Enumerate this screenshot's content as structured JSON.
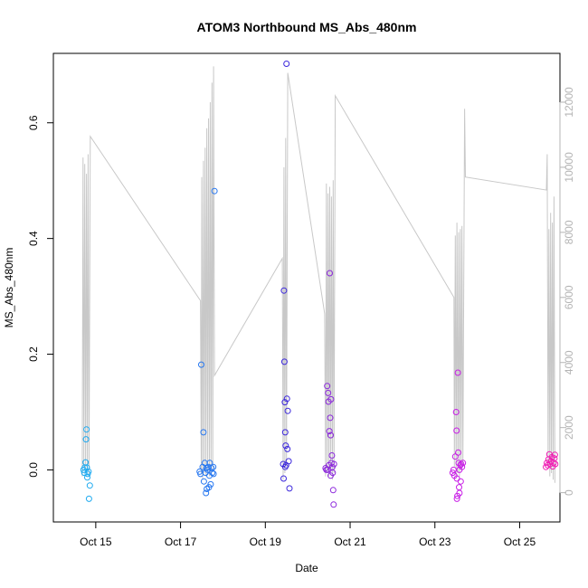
{
  "chart_data": {
    "type": "scatter",
    "title": "ATOM3 Northbound MS_Abs_480nm",
    "xlabel": "Date",
    "ylabel": "MS_Abs_480nm",
    "x_ticks": [
      "Oct 15",
      "Oct 17",
      "Oct 19",
      "Oct 21",
      "Oct 23",
      "Oct 25"
    ],
    "x_tick_days": [
      15,
      17,
      19,
      21,
      23,
      25
    ],
    "xlim_days": [
      14.0,
      25.95
    ],
    "ylim": [
      -0.09,
      0.72
    ],
    "y_ticks": [
      0.0,
      0.2,
      0.4,
      0.6
    ],
    "y_tick_labels": [
      "0.0",
      "0.2",
      "0.4",
      "0.6"
    ],
    "y2_ticks": [
      0,
      2000,
      4000,
      6000,
      8000,
      10000,
      12000
    ],
    "y2_tick_labels": [
      "0",
      "2000",
      "4000",
      "6000",
      "8000",
      "10000",
      "12000"
    ],
    "y2lim": [
      -900,
      13500
    ],
    "colors": {
      "axis": "#000000",
      "altitude": "#c8c8c8",
      "right_axis": "#b4b4b4"
    },
    "series": [
      {
        "role": "MS_Abs_480nm",
        "points": [
          {
            "day": 14.71,
            "y": 0.0,
            "color": "#1eaaf0"
          },
          {
            "day": 14.73,
            "y": -0.005,
            "color": "#1eaaf0"
          },
          {
            "day": 14.74,
            "y": 0.004,
            "color": "#1eaaf0"
          },
          {
            "day": 14.76,
            "y": 0.013,
            "color": "#1eaaf0"
          },
          {
            "day": 14.77,
            "y": 0.053,
            "color": "#1eaaf0"
          },
          {
            "day": 14.78,
            "y": 0.07,
            "color": "#1eaaf0"
          },
          {
            "day": 14.79,
            "y": 0.004,
            "color": "#1eaaf0"
          },
          {
            "day": 14.8,
            "y": -0.013,
            "color": "#1eaaf0"
          },
          {
            "day": 14.81,
            "y": -0.007,
            "color": "#1eaaf0"
          },
          {
            "day": 14.83,
            "y": -0.003,
            "color": "#1eaaf0"
          },
          {
            "day": 14.84,
            "y": -0.05,
            "color": "#1eaaf0"
          },
          {
            "day": 14.86,
            "y": -0.027,
            "color": "#1eaaf0"
          },
          {
            "day": 17.45,
            "y": -0.003,
            "color": "#2878f0"
          },
          {
            "day": 17.47,
            "y": -0.007,
            "color": "#2878f0"
          },
          {
            "day": 17.49,
            "y": 0.182,
            "color": "#2878f0"
          },
          {
            "day": 17.52,
            "y": 0.005,
            "color": "#2878f0"
          },
          {
            "day": 17.54,
            "y": 0.065,
            "color": "#2878f0"
          },
          {
            "day": 17.55,
            "y": -0.02,
            "color": "#2878f0"
          },
          {
            "day": 17.57,
            "y": 0.012,
            "color": "#2878f0"
          },
          {
            "day": 17.59,
            "y": -0.005,
            "color": "#2878f0"
          },
          {
            "day": 17.61,
            "y": 0.003,
            "color": "#2878f0"
          },
          {
            "day": 17.62,
            "y": -0.033,
            "color": "#2878f0"
          },
          {
            "day": 17.64,
            "y": 0.0,
            "color": "#2878f0"
          },
          {
            "day": 17.66,
            "y": 0.005,
            "color": "#2878f0"
          },
          {
            "day": 17.68,
            "y": -0.01,
            "color": "#2878f0"
          },
          {
            "day": 17.69,
            "y": 0.012,
            "color": "#2878f0"
          },
          {
            "day": 17.71,
            "y": -0.025,
            "color": "#2878f0"
          },
          {
            "day": 17.73,
            "y": 0.003,
            "color": "#2878f0"
          },
          {
            "day": 17.75,
            "y": -0.005,
            "color": "#2878f0"
          },
          {
            "day": 17.77,
            "y": 0.005,
            "color": "#2878f0"
          },
          {
            "day": 17.78,
            "y": -0.007,
            "color": "#2878f0"
          },
          {
            "day": 17.8,
            "y": 0.482,
            "color": "#2878f0"
          },
          {
            "day": 17.6,
            "y": -0.04,
            "color": "#2878f0"
          },
          {
            "day": 17.67,
            "y": -0.03,
            "color": "#2878f0"
          },
          {
            "day": 19.42,
            "y": 0.01,
            "color": "#3c28dc"
          },
          {
            "day": 19.43,
            "y": -0.015,
            "color": "#3c28dc"
          },
          {
            "day": 19.44,
            "y": 0.31,
            "color": "#3c28dc"
          },
          {
            "day": 19.45,
            "y": 0.187,
            "color": "#3c28dc"
          },
          {
            "day": 19.46,
            "y": 0.117,
            "color": "#3c28dc"
          },
          {
            "day": 19.47,
            "y": 0.065,
            "color": "#3c28dc"
          },
          {
            "day": 19.48,
            "y": 0.042,
            "color": "#3c28dc"
          },
          {
            "day": 19.49,
            "y": 0.008,
            "color": "#3c28dc"
          },
          {
            "day": 19.5,
            "y": 0.702,
            "color": "#3c28dc"
          },
          {
            "day": 19.51,
            "y": 0.123,
            "color": "#3c28dc"
          },
          {
            "day": 19.52,
            "y": 0.036,
            "color": "#3c28dc"
          },
          {
            "day": 19.53,
            "y": 0.102,
            "color": "#3c28dc"
          },
          {
            "day": 19.55,
            "y": 0.015,
            "color": "#3c28dc"
          },
          {
            "day": 19.57,
            "y": -0.032,
            "color": "#3c28dc"
          },
          {
            "day": 19.47,
            "y": 0.005,
            "color": "#3c28dc"
          },
          {
            "day": 20.42,
            "y": 0.003,
            "color": "#8c28dc"
          },
          {
            "day": 20.44,
            "y": 0.0,
            "color": "#8c28dc"
          },
          {
            "day": 20.46,
            "y": 0.145,
            "color": "#8c28dc"
          },
          {
            "day": 20.48,
            "y": 0.133,
            "color": "#8c28dc"
          },
          {
            "day": 20.49,
            "y": 0.118,
            "color": "#8c28dc"
          },
          {
            "day": 20.5,
            "y": 0.008,
            "color": "#8c28dc"
          },
          {
            "day": 20.51,
            "y": 0.067,
            "color": "#8c28dc"
          },
          {
            "day": 20.52,
            "y": 0.34,
            "color": "#8c28dc"
          },
          {
            "day": 20.53,
            "y": 0.09,
            "color": "#8c28dc"
          },
          {
            "day": 20.54,
            "y": 0.06,
            "color": "#8c28dc"
          },
          {
            "day": 20.55,
            "y": 0.122,
            "color": "#8c28dc"
          },
          {
            "day": 20.56,
            "y": 0.012,
            "color": "#8c28dc"
          },
          {
            "day": 20.57,
            "y": 0.025,
            "color": "#8c28dc"
          },
          {
            "day": 20.58,
            "y": 0.005,
            "color": "#8c28dc"
          },
          {
            "day": 20.59,
            "y": -0.005,
            "color": "#8c28dc"
          },
          {
            "day": 20.6,
            "y": -0.035,
            "color": "#8c28dc"
          },
          {
            "day": 20.61,
            "y": -0.06,
            "color": "#8c28dc"
          },
          {
            "day": 20.62,
            "y": 0.01,
            "color": "#8c28dc"
          },
          {
            "day": 20.54,
            "y": -0.01,
            "color": "#8c28dc"
          },
          {
            "day": 20.47,
            "y": 0.0,
            "color": "#8c28dc"
          },
          {
            "day": 23.42,
            "y": -0.005,
            "color": "#c81ee6"
          },
          {
            "day": 23.44,
            "y": 0.0,
            "color": "#c81ee6"
          },
          {
            "day": 23.46,
            "y": -0.01,
            "color": "#c81ee6"
          },
          {
            "day": 23.48,
            "y": 0.023,
            "color": "#c81ee6"
          },
          {
            "day": 23.5,
            "y": 0.1,
            "color": "#c81ee6"
          },
          {
            "day": 23.51,
            "y": 0.068,
            "color": "#c81ee6"
          },
          {
            "day": 23.52,
            "y": -0.015,
            "color": "#c81ee6"
          },
          {
            "day": 23.53,
            "y": -0.045,
            "color": "#c81ee6"
          },
          {
            "day": 23.54,
            "y": 0.168,
            "color": "#c81ee6"
          },
          {
            "day": 23.55,
            "y": 0.03,
            "color": "#c81ee6"
          },
          {
            "day": 23.56,
            "y": 0.012,
            "color": "#c81ee6"
          },
          {
            "day": 23.57,
            "y": -0.03,
            "color": "#c81ee6"
          },
          {
            "day": 23.58,
            "y": 0.0,
            "color": "#c81ee6"
          },
          {
            "day": 23.6,
            "y": 0.008,
            "color": "#c81ee6"
          },
          {
            "day": 23.61,
            "y": -0.02,
            "color": "#c81ee6"
          },
          {
            "day": 23.62,
            "y": 0.01,
            "color": "#c81ee6"
          },
          {
            "day": 23.64,
            "y": 0.005,
            "color": "#c81ee6"
          },
          {
            "day": 23.66,
            "y": 0.012,
            "color": "#c81ee6"
          },
          {
            "day": 23.52,
            "y": -0.05,
            "color": "#c81ee6"
          },
          {
            "day": 23.58,
            "y": -0.04,
            "color": "#c81ee6"
          },
          {
            "day": 25.62,
            "y": 0.005,
            "color": "#f01eb4"
          },
          {
            "day": 25.64,
            "y": 0.012,
            "color": "#f01eb4"
          },
          {
            "day": 25.66,
            "y": 0.008,
            "color": "#f01eb4"
          },
          {
            "day": 25.68,
            "y": 0.018,
            "color": "#f01eb4"
          },
          {
            "day": 25.7,
            "y": 0.027,
            "color": "#f01eb4"
          },
          {
            "day": 25.72,
            "y": 0.01,
            "color": "#f01eb4"
          },
          {
            "day": 25.74,
            "y": 0.015,
            "color": "#f01eb4"
          },
          {
            "day": 25.76,
            "y": 0.022,
            "color": "#f01eb4"
          },
          {
            "day": 25.78,
            "y": 0.006,
            "color": "#f01eb4"
          },
          {
            "day": 25.8,
            "y": 0.012,
            "color": "#f01eb4"
          },
          {
            "day": 25.82,
            "y": 0.02,
            "color": "#f01eb4"
          },
          {
            "day": 25.84,
            "y": 0.01,
            "color": "#f01eb4"
          },
          {
            "day": 25.83,
            "y": 0.026,
            "color": "#f01eb4"
          }
        ]
      },
      {
        "role": "altitude (right axis)",
        "color": "#c8c8c8",
        "points": [
          [
            14.68,
            500
          ],
          [
            14.7,
            10300
          ],
          [
            14.72,
            800
          ],
          [
            14.74,
            10100
          ],
          [
            14.76,
            600
          ],
          [
            14.78,
            9800
          ],
          [
            14.8,
            700
          ],
          [
            14.82,
            10400
          ],
          [
            14.84,
            500
          ],
          [
            14.87,
            10950
          ],
          [
            17.47,
            5900
          ],
          [
            17.49,
            600
          ],
          [
            17.5,
            9700
          ],
          [
            17.52,
            400
          ],
          [
            17.54,
            10200
          ],
          [
            17.56,
            600
          ],
          [
            17.58,
            10600
          ],
          [
            17.6,
            500
          ],
          [
            17.62,
            11200
          ],
          [
            17.64,
            700
          ],
          [
            17.66,
            11500
          ],
          [
            17.68,
            500
          ],
          [
            17.7,
            12000
          ],
          [
            17.72,
            600
          ],
          [
            17.74,
            12600
          ],
          [
            17.76,
            700
          ],
          [
            17.78,
            13100
          ],
          [
            17.8,
            3600
          ],
          [
            19.4,
            7200
          ],
          [
            19.42,
            400
          ],
          [
            19.44,
            10000
          ],
          [
            19.46,
            600
          ],
          [
            19.48,
            10900
          ],
          [
            19.5,
            800
          ],
          [
            19.53,
            12900
          ],
          [
            20.4,
            5500
          ],
          [
            20.42,
            500
          ],
          [
            20.44,
            9500
          ],
          [
            20.46,
            600
          ],
          [
            20.48,
            9200
          ],
          [
            20.5,
            500
          ],
          [
            20.52,
            9400
          ],
          [
            20.54,
            700
          ],
          [
            20.56,
            9100
          ],
          [
            20.58,
            400
          ],
          [
            20.6,
            9600
          ],
          [
            20.62,
            600
          ],
          [
            20.65,
            12200
          ],
          [
            23.45,
            6000
          ],
          [
            23.46,
            800
          ],
          [
            23.48,
            7900
          ],
          [
            23.5,
            500
          ],
          [
            23.52,
            8300
          ],
          [
            23.54,
            600
          ],
          [
            23.56,
            8000
          ],
          [
            23.58,
            500
          ],
          [
            23.6,
            8100
          ],
          [
            23.62,
            700
          ],
          [
            23.64,
            8200
          ],
          [
            23.66,
            900
          ],
          [
            23.7,
            11800
          ],
          [
            23.72,
            9700
          ],
          [
            25.63,
            9300
          ],
          [
            25.65,
            10400
          ],
          [
            25.67,
            800
          ],
          [
            25.69,
            8100
          ],
          [
            25.71,
            500
          ],
          [
            25.73,
            8600
          ],
          [
            25.75,
            600
          ],
          [
            25.77,
            8300
          ],
          [
            25.79,
            400
          ],
          [
            25.81,
            9100
          ],
          [
            25.83,
            300
          ]
        ]
      }
    ]
  }
}
